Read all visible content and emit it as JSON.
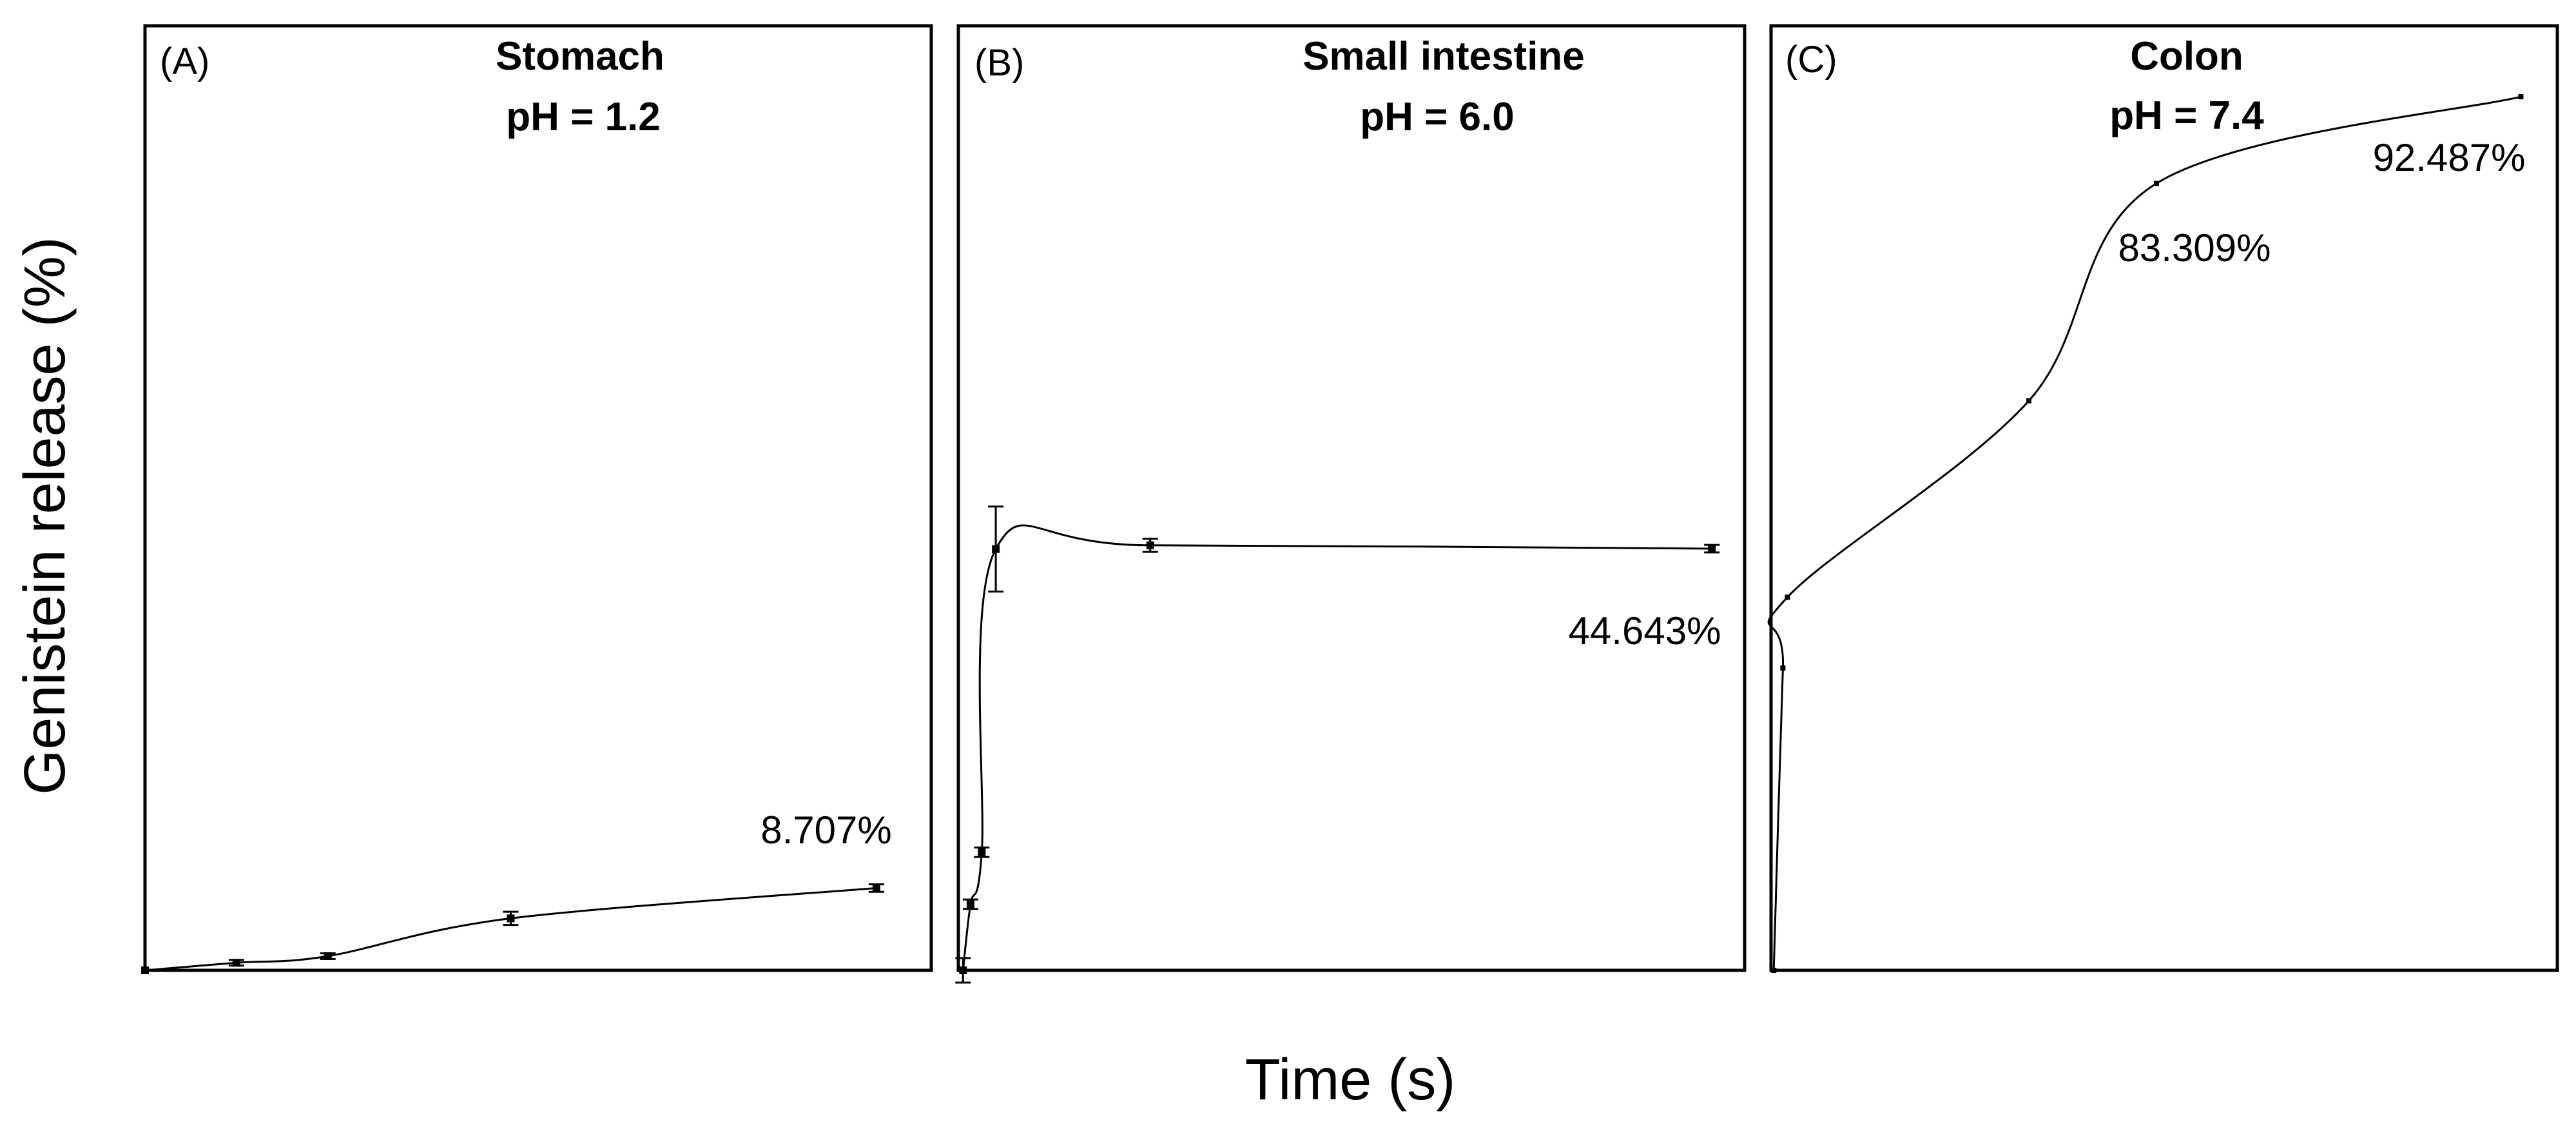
{
  "figure": {
    "y_axis_title": "Genistein release (%)",
    "x_axis_title": "Time (s)"
  },
  "chart_data": [
    {
      "type": "line",
      "panel_letter": "(A)",
      "title": "Stomach",
      "subtitle": "pH = 1.2",
      "xlabel": "Time (s)",
      "ylabel": "Genistein release (%)",
      "xlim": [
        0,
        8.6
      ],
      "ylim": [
        0,
        100
      ],
      "x": [
        0,
        1,
        2,
        4,
        8
      ],
      "values": [
        0,
        0.8,
        1.5,
        5.5,
        8.707
      ],
      "errors": [
        0,
        0.3,
        0.3,
        0.7,
        0.4
      ],
      "annotation": "8.707%",
      "smooth": true
    },
    {
      "type": "line",
      "panel_letter": "(B)",
      "title": "Small intestine",
      "subtitle": "pH = 6.0",
      "xlabel": "Time (s)",
      "ylabel": "Genistein release (%)",
      "xlim": [
        -0.05,
        8.35
      ],
      "ylim": [
        0,
        100
      ],
      "x": [
        0,
        0.08,
        0.2,
        0.35,
        2,
        8
      ],
      "values": [
        0,
        7,
        12.5,
        44.6,
        45,
        44.643
      ],
      "errors": [
        1.3,
        0.5,
        0.5,
        4.5,
        0.7,
        0.4
      ],
      "annotation": "44.643%",
      "smooth": true
    },
    {
      "type": "line",
      "panel_letter": "(C)",
      "title": "Colon",
      "subtitle": "pH = 7.4",
      "xlabel": "Time (s)",
      "ylabel": "Genistein release (%)",
      "xlim": [
        -0.03,
        8.6
      ],
      "ylim": [
        0,
        100
      ],
      "x": [
        0,
        0.1,
        0.15,
        2.8,
        4.2,
        8.2
      ],
      "values": [
        0,
        32,
        39.5,
        60.3,
        83.309,
        92.487
      ],
      "errors": [
        0,
        0,
        0,
        0,
        0,
        0
      ],
      "annotation": "83.309%",
      "annotation_2": "92.487%",
      "smooth": true
    }
  ]
}
